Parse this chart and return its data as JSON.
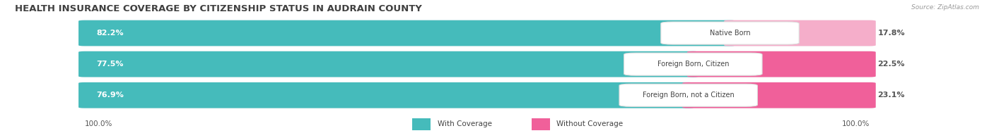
{
  "title": "HEALTH INSURANCE COVERAGE BY CITIZENSHIP STATUS IN AUDRAIN COUNTY",
  "source": "Source: ZipAtlas.com",
  "categories": [
    "Native Born",
    "Foreign Born, Citizen",
    "Foreign Born, not a Citizen"
  ],
  "with_coverage": [
    82.2,
    77.5,
    76.9
  ],
  "without_coverage": [
    17.8,
    22.5,
    23.1
  ],
  "color_with": "#45BBBB",
  "without_colors": [
    "#F5AECA",
    "#F0609A",
    "#F0609A"
  ],
  "bar_bg": "#E8E8EC",
  "left_label": "100.0%",
  "right_label": "100.0%",
  "title_fontsize": 9.5,
  "figsize": [
    14.06,
    1.96
  ],
  "dpi": 100
}
